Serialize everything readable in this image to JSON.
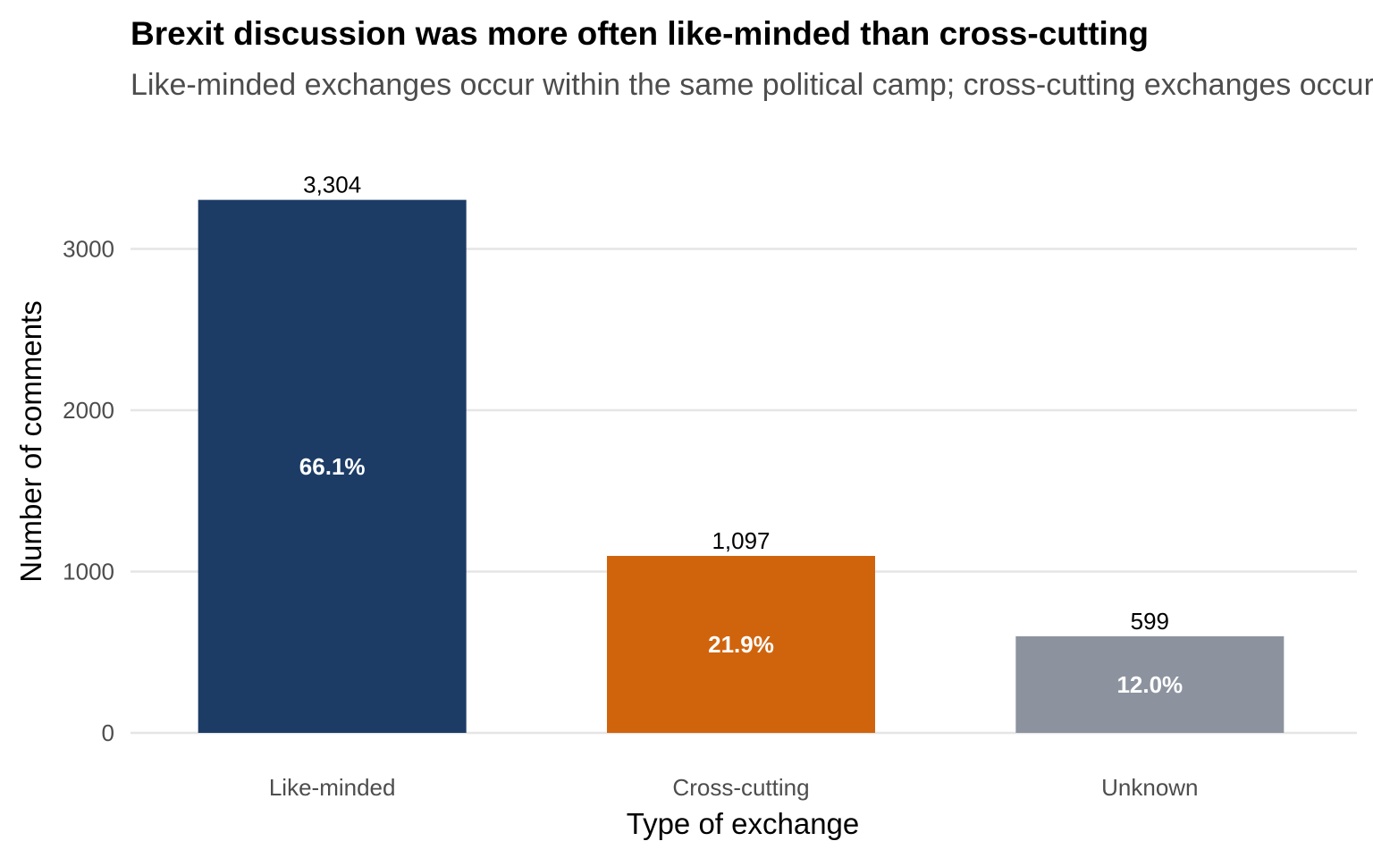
{
  "chart_data": {
    "type": "bar",
    "title": "Brexit discussion was more often like-minded than cross-cutting",
    "subtitle": "Like-minded exchanges occur within the same political camp; cross-cutting exchanges occur between camps",
    "xlabel": "Type of exchange",
    "ylabel": "Number of comments",
    "categories": [
      "Like-minded",
      "Cross-cutting",
      "Unknown"
    ],
    "values": [
      3304,
      1097,
      599
    ],
    "value_labels": [
      "3,304",
      "1,097",
      "599"
    ],
    "percent_labels": [
      "66.1%",
      "21.9%",
      "12.0%"
    ],
    "colors": [
      "#1c3c66",
      "#d0640d",
      "#8c939f"
    ],
    "ylim": [
      0,
      3304
    ],
    "yticks": [
      0,
      1000,
      2000,
      3000
    ],
    "ytick_labels": [
      "0",
      "1000",
      "2000",
      "3000"
    ],
    "grid": true,
    "legend": "none"
  }
}
